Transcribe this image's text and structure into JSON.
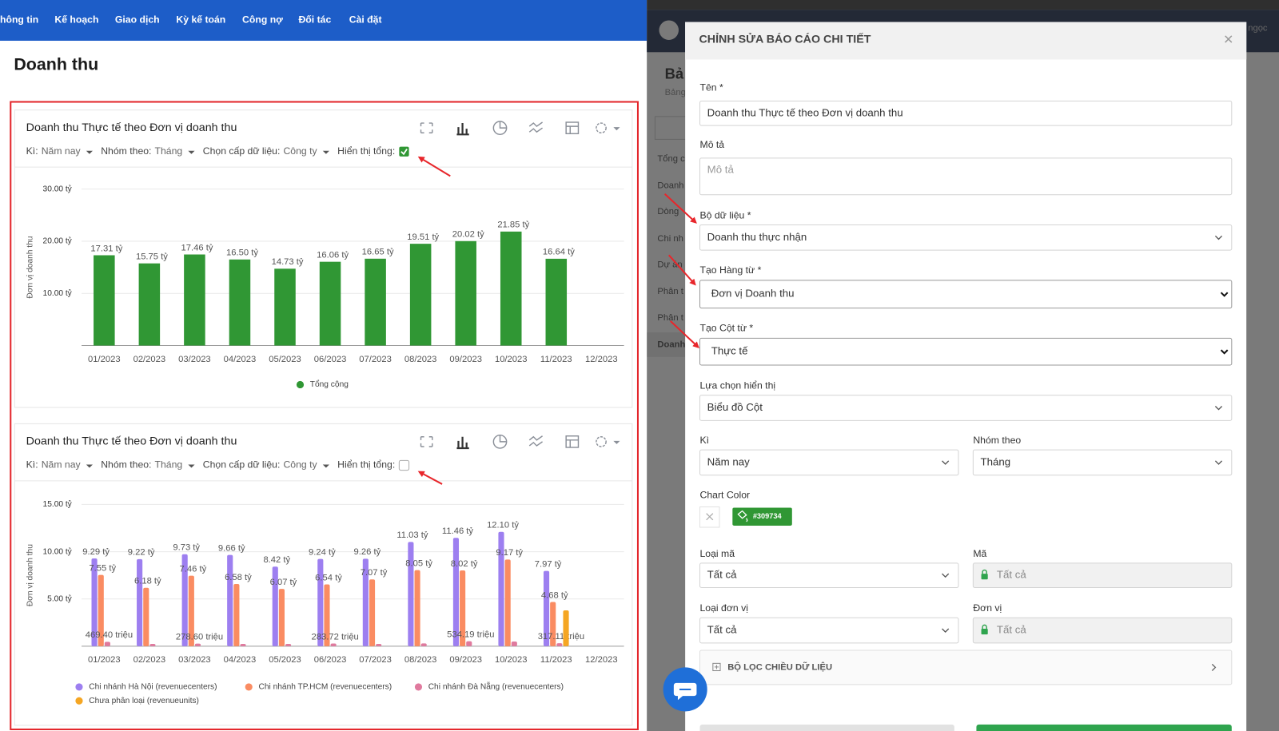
{
  "nav": {
    "items": [
      "hông tin",
      "Kế hoạch",
      "Giao dịch",
      "Kỳ kế toán",
      "Công nợ",
      "Đối tác",
      "Cài đặt"
    ]
  },
  "page_title": "Doanh thu",
  "chart_data": [
    {
      "type": "bar",
      "title": "Doanh thu Thực tế theo Đơn vị doanh thu",
      "filters": [
        {
          "label": "Kì:",
          "value": "Năm nay"
        },
        {
          "label": "Nhóm theo:",
          "value": "Tháng"
        },
        {
          "label": "Chọn cấp dữ liệu:",
          "value": "Công ty"
        }
      ],
      "show_total_label": "Hiển thị tổng:",
      "show_total": true,
      "y_label": "Đơn vị doanh thu",
      "categories": [
        "01/2023",
        "02/2023",
        "03/2023",
        "04/2023",
        "05/2023",
        "06/2023",
        "07/2023",
        "08/2023",
        "09/2023",
        "10/2023",
        "11/2023",
        "12/2023"
      ],
      "series": [
        {
          "name": "Tổng cộng",
          "color": "#309734",
          "values": [
            17.31,
            15.75,
            17.46,
            16.5,
            14.73,
            16.06,
            16.65,
            19.51,
            20.02,
            21.85,
            16.64,
            null
          ],
          "value_labels": [
            "17.31 tỷ",
            "15.75 tỷ",
            "17.46 tỷ",
            "16.50 tỷ",
            "14.73 tỷ",
            "16.06 tỷ",
            "16.65 tỷ",
            "19.51 tỷ",
            "20.02 tỷ",
            "21.85 tỷ",
            "16.64 tỷ",
            null
          ]
        }
      ],
      "ylim": [
        0,
        30
      ],
      "yticks": [
        {
          "value": 10,
          "label": "10.00 tỷ"
        },
        {
          "value": 20,
          "label": "20.00 tỷ"
        },
        {
          "value": 30,
          "label": "30.00 tỷ"
        }
      ],
      "grid": true
    },
    {
      "type": "bar",
      "title": "Doanh thu Thực tế theo Đơn vị doanh thu",
      "filters": [
        {
          "label": "Kì:",
          "value": "Năm nay"
        },
        {
          "label": "Nhóm theo:",
          "value": "Tháng"
        },
        {
          "label": "Chọn cấp dữ liệu:",
          "value": "Công ty"
        }
      ],
      "show_total_label": "Hiển thị tổng:",
      "show_total": false,
      "y_label": "Đơn vị doanh thu",
      "categories": [
        "01/2023",
        "02/2023",
        "03/2023",
        "04/2023",
        "05/2023",
        "06/2023",
        "07/2023",
        "08/2023",
        "09/2023",
        "10/2023",
        "11/2023",
        "12/2023"
      ],
      "series": [
        {
          "name": "Chi nhánh Hà Nội (revenuecenters)",
          "color": "#9d7ff0",
          "values": [
            9.29,
            9.22,
            9.73,
            9.66,
            8.42,
            9.24,
            9.26,
            11.03,
            11.46,
            12.1,
            7.97,
            null
          ],
          "value_labels": [
            "9.29 tỷ",
            "9.22 tỷ",
            "9.73 tỷ",
            "9.66 tỷ",
            "8.42 tỷ",
            "9.24 tỷ",
            "9.26 tỷ",
            "11.03 tỷ",
            "11.46 tỷ",
            "12.10 tỷ",
            "7.97 tỷ",
            null
          ]
        },
        {
          "name": "Chi nhánh TP.HCM (revenuecenters)",
          "color": "#fa8c62",
          "values": [
            7.55,
            6.18,
            7.46,
            6.58,
            6.07,
            6.54,
            7.07,
            8.05,
            8.02,
            9.17,
            4.68,
            null
          ],
          "value_labels": [
            "7.55 tỷ",
            "6.18 tỷ",
            "7.46 tỷ",
            "6.58 tỷ",
            "6.07 tỷ",
            "6.54 tỷ",
            "7.07 tỷ",
            "8.05 tỷ",
            "8.02 tỷ",
            "9.17 tỷ",
            "4.68 tỷ",
            null
          ]
        },
        {
          "name": "Chi nhánh Đà Nẵng (revenuecenters)",
          "color": "#e07a9e",
          "values": [
            0.4694,
            0.25,
            0.2786,
            0.25,
            0.25,
            0.28372,
            0.25,
            0.3,
            0.53419,
            0.5,
            0.31711,
            null
          ],
          "value_labels": [
            "469.40 triệu",
            null,
            "278.60 triệu",
            null,
            null,
            "283.72 triệu",
            null,
            null,
            "534.19 triệu",
            null,
            "317.11 triệu",
            null
          ]
        },
        {
          "name": "Chưa phân loại (revenueunits)",
          "color": "#f5a623",
          "values": [
            null,
            null,
            null,
            null,
            null,
            null,
            null,
            null,
            null,
            null,
            3.8,
            null
          ]
        }
      ],
      "ylim": [
        0,
        15
      ],
      "yticks": [
        {
          "value": 5,
          "label": "5.00 tỷ"
        },
        {
          "value": 10,
          "label": "10.00 tỷ"
        },
        {
          "value": 15,
          "label": "15.00 tỷ"
        }
      ],
      "grid": true
    }
  ],
  "background": {
    "heading": "Bả",
    "subheading": "Bảng",
    "user": "ngọc",
    "sidebar": [
      "Tổng c",
      "Doanh",
      "Dòng",
      "Chi nh",
      "Dự án",
      "Phân t",
      "Phân t",
      "Doanh"
    ]
  },
  "modal": {
    "title": "CHỈNH SỬA BÁO CÁO CHI TIẾT",
    "name": {
      "label": "Tên *",
      "value": "Doanh thu Thực tế theo Đơn vị doanh thu"
    },
    "description": {
      "label": "Mô tả",
      "placeholder": "Mô tả"
    },
    "dataset": {
      "label": "Bộ dữ liệu *",
      "value": "Doanh thu thực nhận"
    },
    "rows_from": {
      "label": "Tạo Hàng từ *",
      "value": "Đơn vị Doanh thu"
    },
    "columns_from": {
      "label": "Tạo Cột từ *",
      "value": "Thực tế"
    },
    "display": {
      "label": "Lựa chọn hiển thị",
      "value": "Biểu đồ Cột"
    },
    "period": {
      "label": "Kì",
      "value": "Năm nay"
    },
    "group_by": {
      "label": "Nhóm theo",
      "value": "Tháng"
    },
    "chart_color": {
      "label": "Chart Color",
      "value": "#309734"
    },
    "code_type": {
      "label": "Loại mã",
      "value": "Tất cả"
    },
    "code": {
      "label": "Mã",
      "value": "Tất cả"
    },
    "unit_type": {
      "label": "Loại đơn vị",
      "value": "Tất cả"
    },
    "unit": {
      "label": "Đơn vị",
      "value": "Tất cả"
    },
    "dimension_filter": "BỘ LỌC CHIỀU DỮ LIỆU"
  }
}
